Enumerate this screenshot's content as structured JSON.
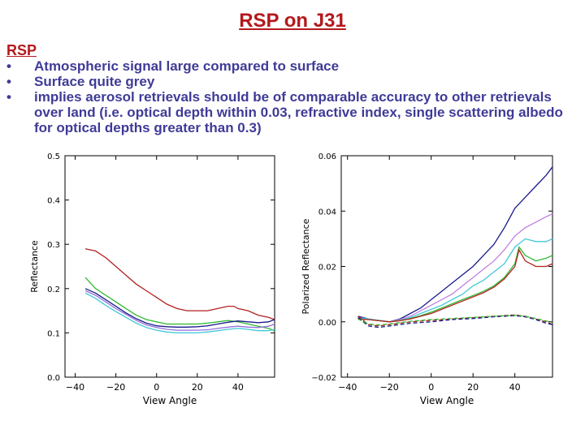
{
  "slide": {
    "title": "RSP on J31",
    "section_label": "RSP",
    "bullets": [
      "Atmospheric signal large compared to surface",
      "Surface quite grey",
      "implies aerosol retrievals should be of comparable accuracy to other retrievals over land (i.e. optical depth within 0.03, refractive index, single scattering albedo for optical depths greater than 0.3)"
    ],
    "bullet_glyph": "•",
    "colors": {
      "title": "#b3191d",
      "bullets": "#3f3b97"
    }
  },
  "chart_data": [
    {
      "type": "line",
      "xlabel": "View Angle",
      "ylabel": "Reflectance",
      "xlim": [
        -45,
        58
      ],
      "ylim": [
        0.0,
        0.5
      ],
      "x_ticks": [
        -40,
        -20,
        0,
        20,
        40
      ],
      "x_tick_labels": [
        "−40",
        "−20",
        "0",
        "20",
        "40"
      ],
      "y_ticks": [
        0.0,
        0.1,
        0.2,
        0.3,
        0.4,
        0.5
      ],
      "y_tick_labels": [
        "0.0",
        "0.1",
        "0.2",
        "0.3",
        "0.4",
        "0.5"
      ],
      "series": [
        {
          "color": "#b22222",
          "dashed": false,
          "x": [
            -35,
            -30,
            -25,
            -20,
            -15,
            -10,
            -5,
            0,
            5,
            10,
            15,
            20,
            25,
            30,
            35,
            38,
            40,
            45,
            50,
            55,
            58
          ],
          "y": [
            0.29,
            0.285,
            0.27,
            0.25,
            0.23,
            0.21,
            0.195,
            0.18,
            0.165,
            0.155,
            0.15,
            0.15,
            0.15,
            0.155,
            0.16,
            0.16,
            0.155,
            0.15,
            0.14,
            0.135,
            0.13
          ]
        },
        {
          "color": "#2eb82e",
          "dashed": false,
          "x": [
            -35,
            -30,
            -25,
            -20,
            -15,
            -10,
            -5,
            0,
            5,
            10,
            15,
            20,
            25,
            30,
            35,
            40,
            45,
            50,
            55,
            58
          ],
          "y": [
            0.225,
            0.2,
            0.185,
            0.17,
            0.155,
            0.14,
            0.13,
            0.125,
            0.12,
            0.12,
            0.12,
            0.12,
            0.122,
            0.125,
            0.128,
            0.125,
            0.12,
            0.115,
            0.11,
            0.105
          ]
        },
        {
          "color": "#1a1a8c",
          "dashed": false,
          "x": [
            -35,
            -30,
            -25,
            -20,
            -15,
            -10,
            -5,
            0,
            5,
            10,
            15,
            20,
            25,
            30,
            35,
            40,
            45,
            50,
            55,
            58
          ],
          "y": [
            0.2,
            0.19,
            0.175,
            0.16,
            0.145,
            0.132,
            0.122,
            0.116,
            0.114,
            0.113,
            0.113,
            0.114,
            0.116,
            0.12,
            0.124,
            0.127,
            0.125,
            0.123,
            0.125,
            0.13
          ]
        },
        {
          "color": "#9370db",
          "dashed": false,
          "x": [
            -35,
            -30,
            -25,
            -20,
            -15,
            -10,
            -5,
            0,
            5,
            10,
            15,
            20,
            25,
            30,
            35,
            40,
            45,
            50,
            55,
            58
          ],
          "y": [
            0.195,
            0.185,
            0.17,
            0.155,
            0.142,
            0.128,
            0.118,
            0.112,
            0.108,
            0.106,
            0.106,
            0.106,
            0.107,
            0.11,
            0.113,
            0.115,
            0.113,
            0.112,
            0.115,
            0.12
          ]
        },
        {
          "color": "#40c8d8",
          "dashed": false,
          "x": [
            -35,
            -30,
            -25,
            -20,
            -15,
            -10,
            -5,
            0,
            5,
            10,
            15,
            20,
            25,
            30,
            35,
            40,
            45,
            50,
            55,
            58
          ],
          "y": [
            0.19,
            0.178,
            0.162,
            0.148,
            0.135,
            0.122,
            0.112,
            0.106,
            0.102,
            0.1,
            0.1,
            0.1,
            0.102,
            0.105,
            0.108,
            0.11,
            0.108,
            0.105,
            0.105,
            0.108
          ]
        }
      ]
    },
    {
      "type": "line",
      "xlabel": "View Angle",
      "ylabel": "Polarized Reflectance",
      "xlim": [
        -43,
        58
      ],
      "ylim": [
        -0.02,
        0.06
      ],
      "x_ticks": [
        -40,
        -20,
        0,
        20,
        40
      ],
      "x_tick_labels": [
        "−40",
        "−20",
        "0",
        "20",
        "40"
      ],
      "y_ticks": [
        -0.02,
        0.0,
        0.02,
        0.04,
        0.06
      ],
      "y_tick_labels": [
        "−0.02",
        "0.00",
        "0.02",
        "0.04",
        "0.06"
      ],
      "series": [
        {
          "color": "#1a1a8c",
          "dashed": false,
          "x": [
            -35,
            -30,
            -25,
            -20,
            -15,
            -10,
            -5,
            0,
            5,
            10,
            15,
            20,
            25,
            30,
            35,
            40,
            45,
            50,
            55,
            58
          ],
          "y": [
            0.002,
            0.001,
            0.0005,
            0.0,
            0.001,
            0.003,
            0.005,
            0.008,
            0.011,
            0.014,
            0.017,
            0.02,
            0.024,
            0.028,
            0.034,
            0.041,
            0.045,
            0.049,
            0.053,
            0.056
          ]
        },
        {
          "color": "#c080e0",
          "dashed": false,
          "x": [
            -35,
            -30,
            -25,
            -20,
            -15,
            -10,
            -5,
            0,
            5,
            10,
            15,
            20,
            25,
            30,
            35,
            40,
            45,
            50,
            55,
            58
          ],
          "y": [
            0.0015,
            0.001,
            0.0005,
            0.0,
            0.0008,
            0.002,
            0.004,
            0.006,
            0.008,
            0.01,
            0.013,
            0.016,
            0.019,
            0.022,
            0.026,
            0.031,
            0.034,
            0.036,
            0.038,
            0.039
          ]
        },
        {
          "color": "#40c8d8",
          "dashed": false,
          "x": [
            -35,
            -30,
            -25,
            -20,
            -15,
            -10,
            -5,
            0,
            5,
            10,
            15,
            20,
            25,
            30,
            35,
            40,
            45,
            50,
            55,
            58
          ],
          "y": [
            0.0015,
            0.001,
            0.0005,
            0.0,
            0.0005,
            0.0015,
            0.003,
            0.0045,
            0.006,
            0.008,
            0.01,
            0.013,
            0.015,
            0.018,
            0.021,
            0.027,
            0.03,
            0.029,
            0.029,
            0.03
          ]
        },
        {
          "color": "#2eb82e",
          "dashed": false,
          "x": [
            -35,
            -30,
            -25,
            -20,
            -15,
            -10,
            -5,
            0,
            5,
            10,
            15,
            20,
            25,
            30,
            35,
            40,
            42,
            45,
            50,
            55,
            58
          ],
          "y": [
            0.001,
            0.0008,
            0.0004,
            0.0,
            0.0004,
            0.0012,
            0.0022,
            0.0035,
            0.005,
            0.0065,
            0.008,
            0.0095,
            0.011,
            0.013,
            0.016,
            0.021,
            0.027,
            0.024,
            0.022,
            0.023,
            0.024
          ]
        },
        {
          "color": "#b22222",
          "dashed": false,
          "x": [
            -35,
            -30,
            -25,
            -20,
            -15,
            -10,
            -5,
            0,
            5,
            10,
            15,
            20,
            25,
            30,
            35,
            40,
            42,
            45,
            50,
            55,
            58
          ],
          "y": [
            0.001,
            0.0008,
            0.0004,
            0.0,
            0.0004,
            0.001,
            0.002,
            0.003,
            0.0045,
            0.006,
            0.0075,
            0.009,
            0.0105,
            0.0125,
            0.0155,
            0.02,
            0.026,
            0.022,
            0.02,
            0.02,
            0.021
          ]
        },
        {
          "color": "#b22222",
          "dashed": true,
          "x": [
            -35,
            -30,
            -25,
            -20,
            -10,
            0,
            10,
            20,
            30,
            40,
            45,
            50,
            55,
            58
          ],
          "y": [
            0.002,
            -0.001,
            -0.0015,
            -0.001,
            0.0,
            0.0005,
            0.001,
            0.0015,
            0.002,
            0.0025,
            0.002,
            0.001,
            0.0,
            -0.001
          ]
        },
        {
          "color": "#1a1a8c",
          "dashed": true,
          "x": [
            -35,
            -30,
            -25,
            -20,
            -10,
            0,
            10,
            20,
            30,
            40,
            45,
            50,
            55,
            58
          ],
          "y": [
            0.0015,
            -0.0015,
            -0.002,
            -0.0015,
            -0.0005,
            0.0,
            0.0008,
            0.0012,
            0.0018,
            0.0022,
            0.0018,
            0.0008,
            -0.0005,
            -0.001
          ]
        },
        {
          "color": "#2eb82e",
          "dashed": true,
          "x": [
            -35,
            -30,
            -25,
            -20,
            -10,
            0,
            10,
            20,
            30,
            40,
            45,
            50,
            55,
            58
          ],
          "y": [
            0.001,
            -0.0008,
            -0.0012,
            -0.0008,
            0.0002,
            0.0008,
            0.0012,
            0.0016,
            0.002,
            0.0024,
            0.002,
            0.0012,
            0.0003,
            -0.0003
          ]
        }
      ]
    }
  ]
}
